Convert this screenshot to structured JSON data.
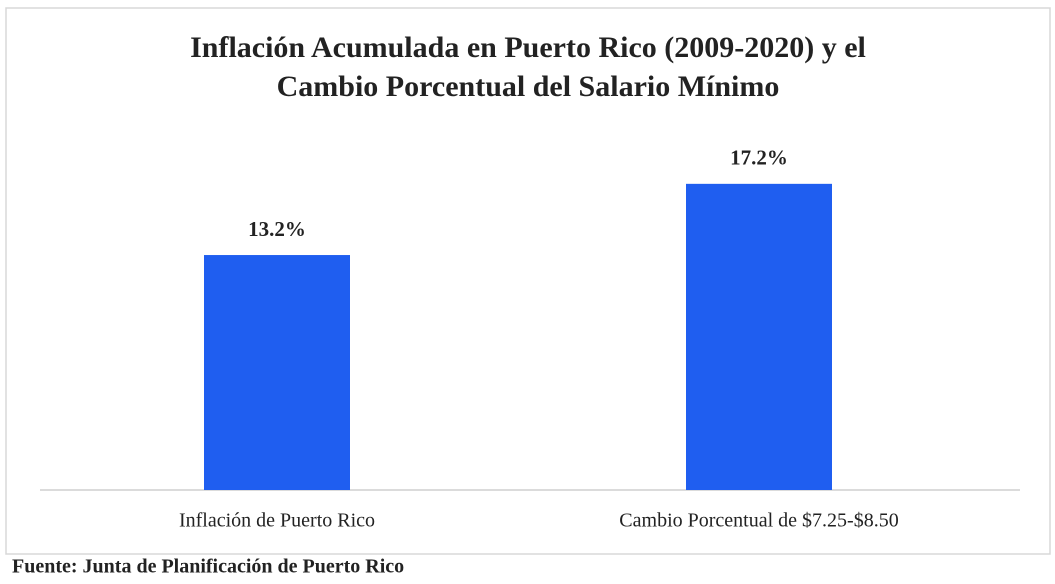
{
  "chart_data": {
    "type": "bar",
    "title": [
      "Inflación Acumulada en Puerto Rico (2009-2020) y el",
      "Cambio Porcentual del Salario Mínimo"
    ],
    "categories": [
      "Inflación de Puerto Rico",
      "Cambio Porcentual de $7.25-$8.50"
    ],
    "values": [
      13.2,
      17.2
    ],
    "value_labels": [
      "13.2%",
      "17.2%"
    ],
    "color": "#1f5ef0",
    "source": "Fuente: Junta de Planificación de Puerto Rico"
  }
}
